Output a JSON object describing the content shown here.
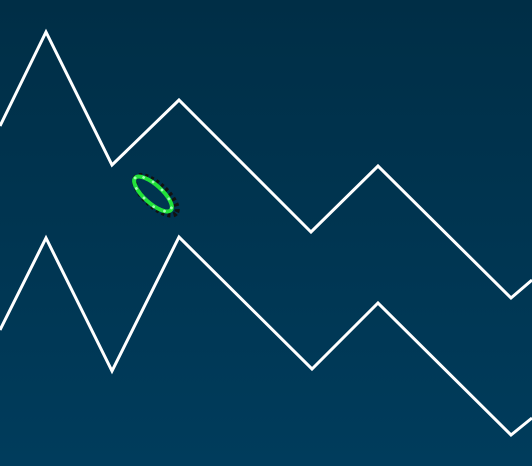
{
  "game": {
    "colors": {
      "background_top": "#002e46",
      "background_bottom": "#003c5c",
      "wall": "#ffffff",
      "player": "#22e23a",
      "player_outline": "#111111"
    },
    "icons": {
      "player": "green-ellipse-ship-icon",
      "walls": "zigzag-tunnel-walls"
    }
  }
}
